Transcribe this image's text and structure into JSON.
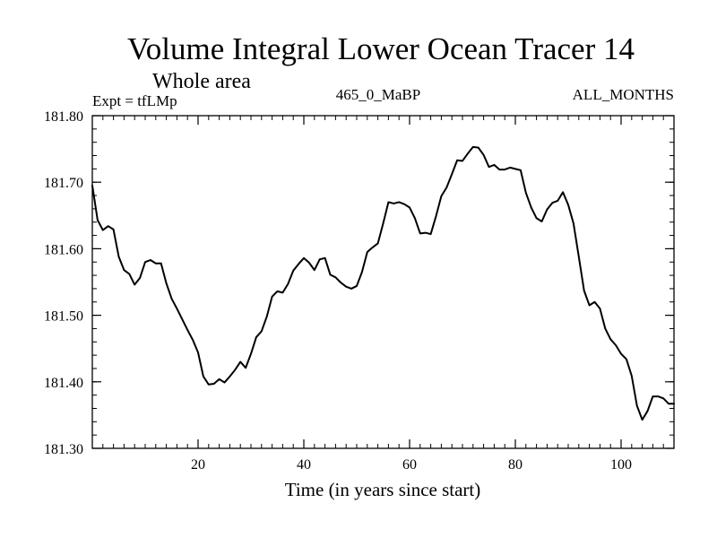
{
  "chart_data": {
    "type": "line",
    "title": "Volume Integral Lower Ocean Tracer 14",
    "subtitle": "Whole area",
    "experiment": "Expt = tfLMp",
    "period": "465_0_MaBP",
    "months": "ALL_MONTHS",
    "xlabel": "Time (in years since start)",
    "ylabel": "",
    "xlim": [
      0,
      110
    ],
    "ylim": [
      181.3,
      181.8
    ],
    "xticks": [
      20,
      40,
      60,
      80,
      100
    ],
    "yticks": [
      181.3,
      181.4,
      181.5,
      181.6,
      181.7,
      181.8
    ],
    "ytick_labels": [
      "181.30",
      "181.40",
      "181.50",
      "181.60",
      "181.70",
      "181.80"
    ],
    "x_minor_step": 2,
    "y_minor_step": 0.02,
    "grid": false,
    "series": [
      {
        "name": "Volume Integral Lower Ocean Tracer 14",
        "color": "#000000",
        "x": [
          0,
          1,
          2,
          3,
          4,
          5,
          6,
          7,
          8,
          9,
          10,
          11,
          12,
          13,
          14,
          15,
          16,
          17,
          18,
          19,
          20,
          21,
          22,
          23,
          24,
          25,
          26,
          27,
          28,
          29,
          30,
          31,
          32,
          33,
          34,
          35,
          36,
          37,
          38,
          39,
          40,
          41,
          42,
          43,
          44,
          45,
          46,
          47,
          48,
          49,
          50,
          51,
          52,
          53,
          54,
          55,
          56,
          57,
          58,
          59,
          60,
          61,
          62,
          63,
          64,
          65,
          66,
          67,
          68,
          69,
          70,
          71,
          72,
          73,
          74,
          75,
          76,
          77,
          78,
          79,
          80,
          81,
          82,
          83,
          84,
          85,
          86,
          87,
          88,
          89,
          90,
          91,
          92,
          93,
          94,
          95,
          96,
          97,
          98,
          99,
          100,
          101,
          102,
          103,
          104,
          105,
          106,
          107,
          108,
          109,
          110
        ],
        "y": [
          181.695,
          181.643,
          181.628,
          181.634,
          181.629,
          181.588,
          181.568,
          181.562,
          181.546,
          181.556,
          181.58,
          181.583,
          181.578,
          181.578,
          181.548,
          181.525,
          181.51,
          181.494,
          181.478,
          181.463,
          181.444,
          181.408,
          181.396,
          181.397,
          181.404,
          181.399,
          181.408,
          181.418,
          181.43,
          181.421,
          181.442,
          181.467,
          181.476,
          181.498,
          181.528,
          181.536,
          181.534,
          181.547,
          181.567,
          181.577,
          181.586,
          181.579,
          181.568,
          181.584,
          181.586,
          181.561,
          181.557,
          181.549,
          181.543,
          181.54,
          181.544,
          181.565,
          181.595,
          181.602,
          181.608,
          181.638,
          181.67,
          181.668,
          181.67,
          181.667,
          181.662,
          181.646,
          181.623,
          181.624,
          181.622,
          181.649,
          181.679,
          181.692,
          181.712,
          181.733,
          181.732,
          181.743,
          181.753,
          181.752,
          181.741,
          181.723,
          181.726,
          181.719,
          181.719,
          181.722,
          181.72,
          181.718,
          181.684,
          181.662,
          181.646,
          181.641,
          181.659,
          181.669,
          181.672,
          181.685,
          181.666,
          181.638,
          181.588,
          181.537,
          181.515,
          181.52,
          181.51,
          181.48,
          181.464,
          181.455,
          181.442,
          181.434,
          181.409,
          181.364,
          181.343,
          181.356,
          181.378,
          181.378,
          181.375,
          181.367,
          181.367
        ]
      }
    ]
  }
}
